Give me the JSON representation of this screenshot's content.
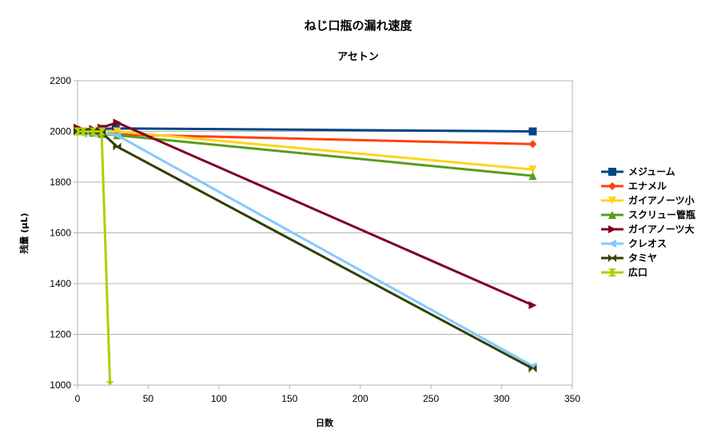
{
  "chart_data": {
    "type": "line",
    "title": "ねじ口瓶の漏れ速度",
    "subtitle": "アセトン",
    "xlabel": "日数",
    "ylabel": "残量 (μL)",
    "xlim": [
      0,
      350
    ],
    "ylim": [
      1000,
      2200
    ],
    "xticks": [
      0,
      50,
      100,
      150,
      200,
      250,
      300,
      350
    ],
    "yticks": [
      1000,
      1200,
      1400,
      1600,
      1800,
      2000,
      2200
    ],
    "grid": true,
    "legend": "right",
    "series": [
      {
        "name": "メジューム",
        "color": "#004586",
        "marker": "square",
        "points": [
          [
            0,
            2000
          ],
          [
            4,
            2000
          ],
          [
            11,
            2000
          ],
          [
            17,
            2010
          ],
          [
            27,
            2012
          ],
          [
            322,
            2000
          ]
        ]
      },
      {
        "name": "エナメル",
        "color": "#ff420e",
        "marker": "diamond",
        "points": [
          [
            0,
            2000
          ],
          [
            4,
            2000
          ],
          [
            11,
            2000
          ],
          [
            17,
            1995
          ],
          [
            28,
            1988
          ],
          [
            322,
            1950
          ]
        ]
      },
      {
        "name": "ガイアノーツ小",
        "color": "#ffd320",
        "marker": "triangle-down",
        "points": [
          [
            0,
            2000
          ],
          [
            4,
            2000
          ],
          [
            11,
            2000
          ],
          [
            17,
            2000
          ],
          [
            28,
            2000
          ],
          [
            322,
            1850
          ]
        ]
      },
      {
        "name": "スクリュー管瓶",
        "color": "#579d1c",
        "marker": "triangle-up",
        "points": [
          [
            0,
            2000
          ],
          [
            4,
            2000
          ],
          [
            11,
            1995
          ],
          [
            17,
            1990
          ],
          [
            28,
            1985
          ],
          [
            322,
            1825
          ]
        ]
      },
      {
        "name": "ガイアノーツ大",
        "color": "#7e0021",
        "marker": "triangle-right",
        "points": [
          [
            0,
            2015
          ],
          [
            4,
            2005
          ],
          [
            11,
            2010
          ],
          [
            17,
            2015
          ],
          [
            28,
            2035
          ],
          [
            322,
            1315
          ]
        ]
      },
      {
        "name": "クレオス",
        "color": "#83caff",
        "marker": "triangle-left",
        "points": [
          [
            0,
            2000
          ],
          [
            4,
            1990
          ],
          [
            11,
            1990
          ],
          [
            17,
            1995
          ],
          [
            28,
            1985
          ],
          [
            322,
            1075
          ]
        ]
      },
      {
        "name": "タミヤ",
        "color": "#314004",
        "marker": "bowtie",
        "points": [
          [
            0,
            2000
          ],
          [
            4,
            2000
          ],
          [
            11,
            2000
          ],
          [
            17,
            1995
          ],
          [
            28,
            1940
          ],
          [
            322,
            1065
          ]
        ]
      },
      {
        "name": "広口",
        "color": "#aecf00",
        "marker": "hourglass",
        "points": [
          [
            0,
            2000
          ],
          [
            4,
            2000
          ],
          [
            11,
            2000
          ],
          [
            17,
            2000
          ],
          [
            23,
            1000
          ]
        ]
      }
    ]
  }
}
